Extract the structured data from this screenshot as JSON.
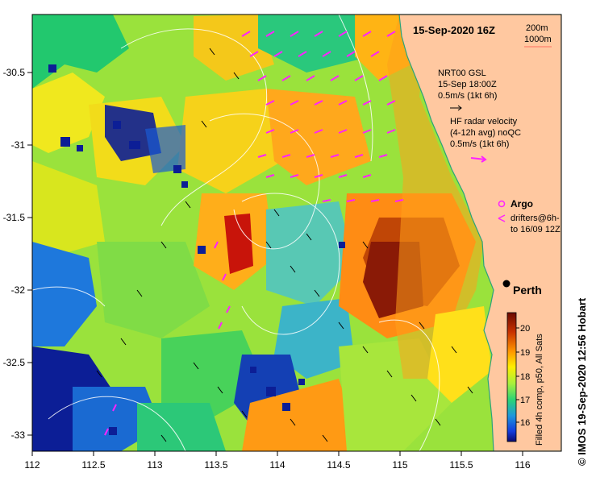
{
  "map": {
    "timestamp": "15-Sep-2020 16Z",
    "scale": {
      "line1": "200m",
      "line2": "1000m"
    },
    "wind_legend": {
      "line1": "NRT00 GSL",
      "line2": "15-Sep 18:00Z",
      "line3": "0.5m/s (1kt 6h)"
    },
    "hf_legend": {
      "line1": "HF radar velocity",
      "line2": "(4-12h avg) noQC",
      "line3": "0.5m/s (1kt 6h)"
    },
    "argo_label": "Argo",
    "drifters": {
      "line1": "drifters@6h-",
      "line2": "to 16/09 12Z"
    },
    "city": "Perth",
    "colorbar": {
      "title": "Filled 4h comp, p50, All Sats",
      "ticks": [
        "20",
        "19",
        "18",
        "17",
        "16"
      ]
    },
    "credit": "© IMOS 19-Sep-2020 12:56 Hobart",
    "lon_ticks": [
      "112",
      "112.5",
      "113",
      "113.5",
      "114",
      "114.5",
      "115",
      "115.5",
      "116"
    ],
    "lat_ticks": [
      "-30.5",
      "-31",
      "-31.5",
      "-32",
      "-32.5",
      "-33"
    ],
    "colors": {
      "land": "#ffc8a0",
      "coast": "#2aa37a",
      "hf_arrow": "#ff22ff"
    }
  }
}
